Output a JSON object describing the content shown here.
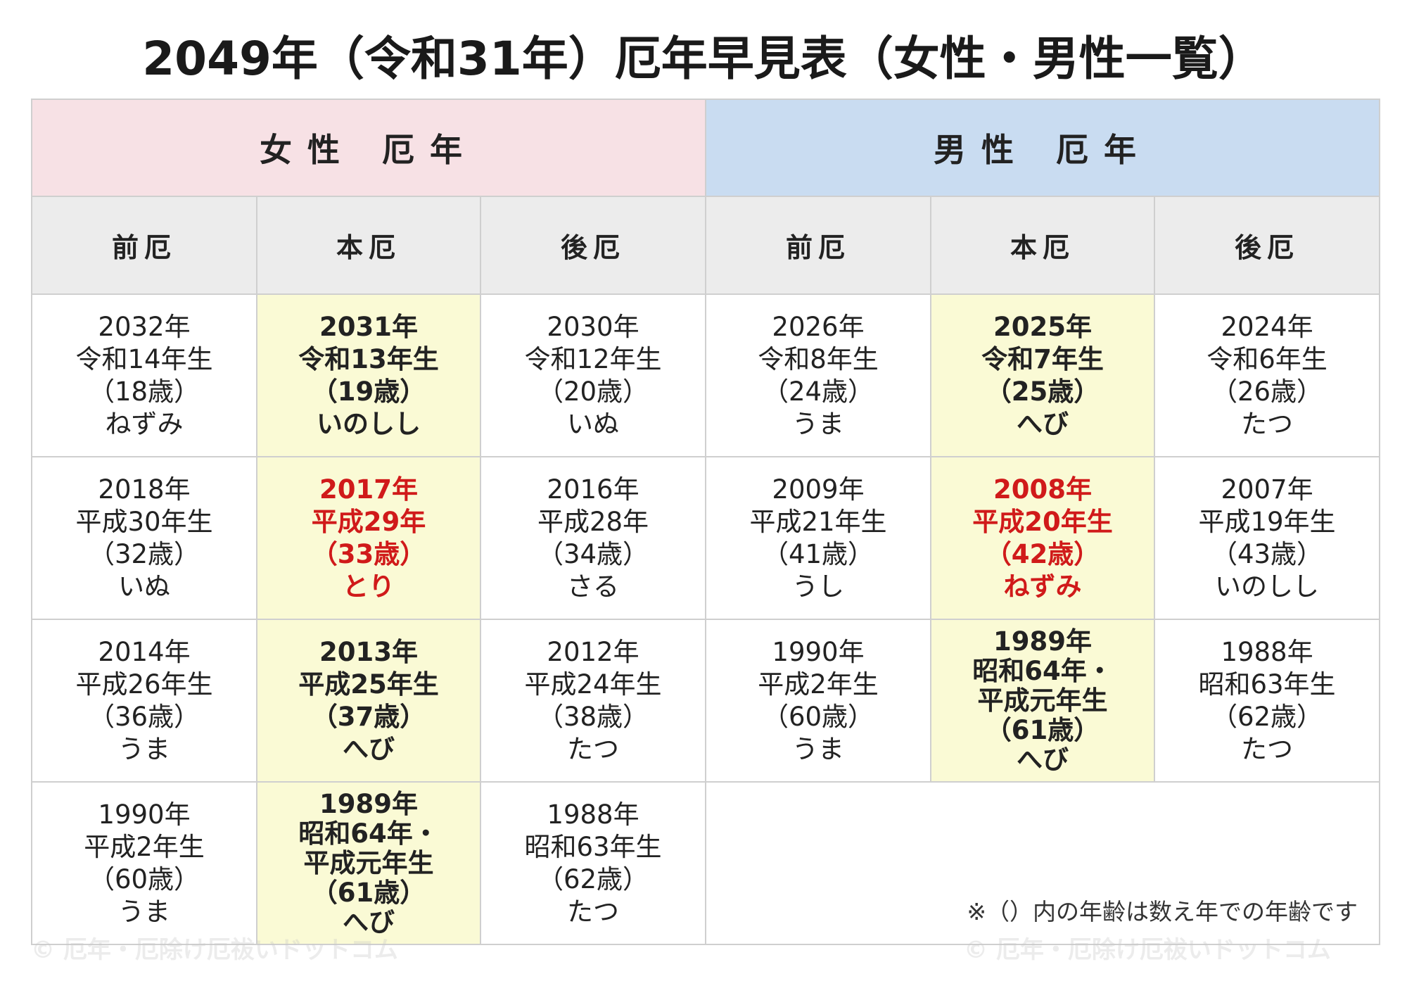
{
  "title": "2049年（令和31年）厄年早見表（女性・男性一覧）",
  "header": {
    "female": "女性 厄年",
    "male": "男性 厄年"
  },
  "columns": [
    "前厄",
    "本厄",
    "後厄",
    "前厄",
    "本厄",
    "後厄"
  ],
  "rows": [
    [
      [
        "2032年",
        "令和14年生",
        "（18歳）",
        "ねずみ"
      ],
      [
        "2031年",
        "令和13年生",
        "（19歳）",
        "いのしし"
      ],
      [
        "2030年",
        "令和12年生",
        "（20歳）",
        "いぬ"
      ],
      [
        "2026年",
        "令和8年生",
        "（24歳）",
        "うま"
      ],
      [
        "2025年",
        "令和7年生",
        "（25歳）",
        "へび"
      ],
      [
        "2024年",
        "令和6年生",
        "（26歳）",
        "たつ"
      ]
    ],
    [
      [
        "2018年",
        "平成30年生",
        "（32歳）",
        "いぬ"
      ],
      [
        "2017年",
        "平成29年",
        "（33歳）",
        "とり"
      ],
      [
        "2016年",
        "平成28年",
        "（34歳）",
        "さる"
      ],
      [
        "2009年",
        "平成21年生",
        "（41歳）",
        "うし"
      ],
      [
        "2008年",
        "平成20年生",
        "（42歳）",
        "ねずみ"
      ],
      [
        "2007年",
        "平成19年生",
        "（43歳）",
        "いのしし"
      ]
    ],
    [
      [
        "2014年",
        "平成26年生",
        "（36歳）",
        "うま"
      ],
      [
        "2013年",
        "平成25年生",
        "（37歳）",
        "へび"
      ],
      [
        "2012年",
        "平成24年生",
        "（38歳）",
        "たつ"
      ],
      [
        "1990年",
        "平成2年生",
        "（60歳）",
        "うま"
      ],
      [
        "1989年",
        "昭和64年・",
        "平成元年生",
        "（61歳）",
        "へび"
      ],
      [
        "1988年",
        "昭和63年生",
        "（62歳）",
        "たつ"
      ]
    ],
    [
      [
        "1990年",
        "平成2年生",
        "（60歳）",
        "うま"
      ],
      [
        "1989年",
        "昭和64年・",
        "平成元年生",
        "（61歳）",
        "へび"
      ],
      [
        "1988年",
        "昭和63年生",
        "（62歳）",
        "たつ"
      ]
    ]
  ],
  "note": "※（）内の年齢は数え年での年齢です",
  "watermark": "© 厄年・厄除け厄祓いドットコム"
}
